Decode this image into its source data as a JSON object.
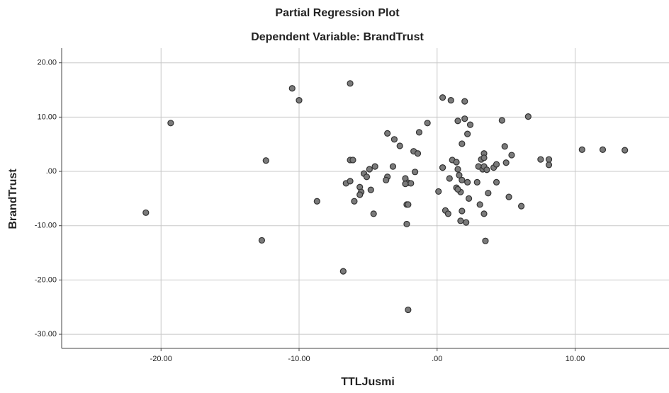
{
  "chart_data": {
    "type": "scatter",
    "title": "Partial Regression Plot",
    "subtitle": "Dependent Variable: BrandTrust",
    "x_label": "TTLJusmi",
    "y_label": "BrandTrust",
    "color": "#7a7a7a",
    "grid": true,
    "xlim": [
      -27.2,
      16.8
    ],
    "ylim": [
      -32.6,
      22.7
    ],
    "xticks": [
      {
        "value": -20,
        "label": "-20.00"
      },
      {
        "value": -10,
        "label": "-10.00"
      },
      {
        "value": 0,
        "label": ".00"
      },
      {
        "value": 10,
        "label": "10.00"
      }
    ],
    "yticks": [
      {
        "value": -30,
        "label": "-30.00"
      },
      {
        "value": -20,
        "label": "-20.00"
      },
      {
        "value": -10,
        "label": "-10.00"
      },
      {
        "value": 0,
        "label": ".00"
      },
      {
        "value": 10,
        "label": "10.00"
      },
      {
        "value": 20,
        "label": "20.00"
      }
    ],
    "x": [
      -21.1,
      -19.3,
      -12.4,
      -12.7,
      -10.5,
      -10.0,
      -8.7,
      -6.8,
      -6.3,
      -6.1,
      -6.3,
      -6.6,
      -6.3,
      -6.0,
      -5.6,
      -5.5,
      -5.6,
      -5.3,
      -5.1,
      -4.9,
      -4.5,
      -4.8,
      -4.6,
      -3.6,
      -3.1,
      -2.7,
      -3.2,
      -3.6,
      -3.7,
      -2.3,
      -2.1,
      -1.9,
      -2.3,
      -2.2,
      -2.1,
      -2.2,
      -2.1,
      -1.7,
      -1.4,
      -1.6,
      -1.3,
      -0.7,
      0.1,
      0.4,
      0.4,
      0.4,
      1.0,
      0.6,
      0.8,
      0.9,
      1.1,
      1.4,
      1.5,
      1.5,
      1.4,
      1.6,
      1.7,
      1.8,
      1.8,
      2.0,
      2.0,
      1.7,
      2.1,
      1.8,
      2.2,
      2.4,
      2.2,
      2.3,
      1.5,
      2.9,
      3.0,
      3.2,
      3.4,
      3.4,
      3.3,
      3.4,
      3.6,
      3.1,
      3.4,
      3.5,
      3.7,
      4.1,
      4.3,
      4.3,
      4.7,
      4.9,
      5.0,
      5.2,
      5.4,
      6.1,
      6.6,
      7.5,
      8.1,
      8.1,
      10.5,
      12.0,
      13.6
    ],
    "values": [
      -7.6,
      8.9,
      2.0,
      -12.7,
      15.3,
      13.1,
      -5.5,
      -18.4,
      2.1,
      2.1,
      16.2,
      -2.2,
      -1.8,
      -5.5,
      -2.9,
      -3.8,
      -4.3,
      -0.4,
      -1.0,
      0.4,
      0.9,
      -3.4,
      -7.8,
      7.0,
      5.9,
      4.7,
      0.9,
      -1.0,
      -1.6,
      -1.3,
      -2.1,
      -2.2,
      -2.3,
      -6.1,
      -6.1,
      -9.7,
      -25.5,
      3.7,
      3.3,
      -0.1,
      7.2,
      8.9,
      -3.7,
      0.7,
      0.7,
      13.6,
      13.1,
      -7.2,
      -7.8,
      -1.3,
      2.1,
      1.7,
      0.4,
      9.3,
      -3.0,
      -0.7,
      -3.8,
      -1.6,
      5.1,
      12.9,
      9.7,
      -9.1,
      -9.4,
      -7.3,
      6.9,
      8.6,
      -2.0,
      -5.0,
      -3.3,
      -2.0,
      0.9,
      2.2,
      3.3,
      2.5,
      0.4,
      0.9,
      0.3,
      -6.1,
      -7.8,
      -12.8,
      -4.0,
      0.7,
      1.3,
      -2.0,
      9.4,
      4.6,
      1.6,
      -4.7,
      3.0,
      -6.4,
      10.1,
      2.2,
      2.2,
      1.2,
      4.0,
      4.0,
      3.9
    ]
  }
}
